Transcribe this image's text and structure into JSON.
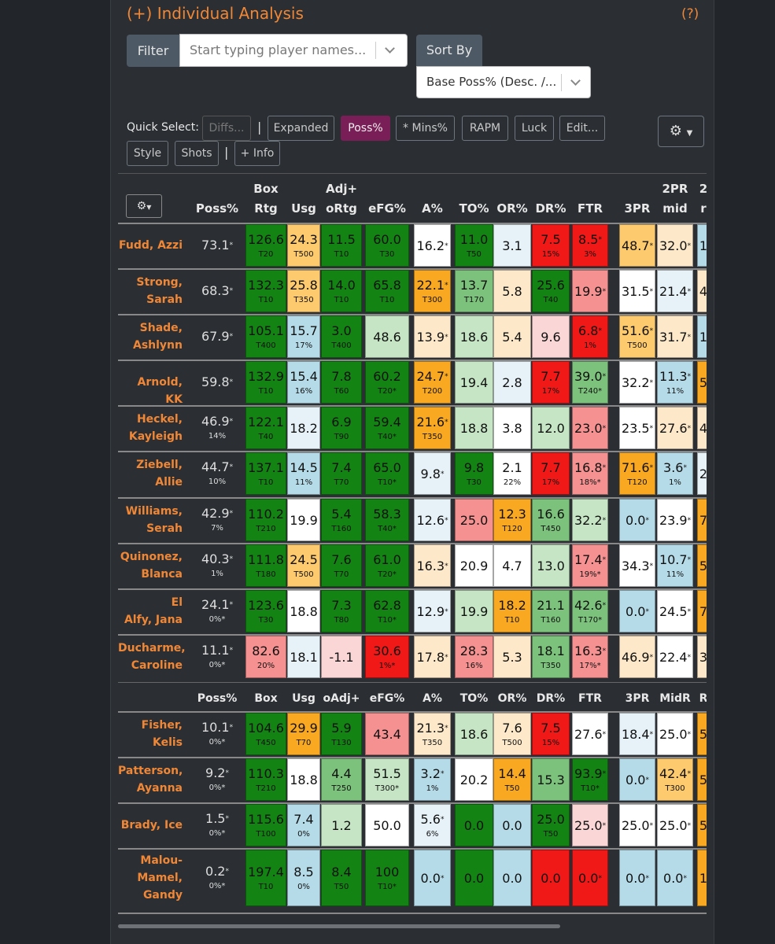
{
  "header": {
    "title": "(+) Individual Analysis",
    "help": "(?)"
  },
  "filter": {
    "label": "Filter",
    "placeholder": "Start typing player names..."
  },
  "sort": {
    "label": "Sort By",
    "value": "Base Poss% (Desc. /..."
  },
  "quick_select": {
    "label": "Quick Select:",
    "buttons": [
      "Diffs...",
      "Expanded",
      "Poss%",
      "* Mins%",
      "RAPM",
      "Luck",
      "Edit...",
      "Style",
      "Shots",
      "+ Info"
    ],
    "active": "Poss%",
    "disabled": "Diffs...",
    "separator": "|"
  },
  "icons": {
    "settings": "gear-icon",
    "dropdown": "chevron-down-icon"
  },
  "table": {
    "headers_top": [
      "",
      "Box",
      "",
      "Adj+",
      "",
      "",
      "",
      "",
      "",
      "",
      "",
      "2PR",
      "2"
    ],
    "headers_bottom": [
      "Poss%",
      "Rtg",
      "Usg",
      "oRtg",
      "eFG%",
      "A%",
      "TO%",
      "OR%",
      "DR%",
      "FTR",
      "3PR",
      "mid",
      "r"
    ],
    "mid_headers": [
      "Poss%",
      "Box",
      "Usg",
      "oAdj+",
      "eFG%",
      "A%",
      "TO%",
      "OR%",
      "DR%",
      "FTR",
      "3PR",
      "MidR",
      "R"
    ],
    "players": [
      {
        "name": "Fudd, Azzi",
        "poss": "73.1",
        "poss_star": true,
        "poss_sub": "",
        "cells": [
          [
            "126.6",
            "T20",
            "dg"
          ],
          [
            "24.3",
            "T500",
            "lo"
          ],
          [
            "11.5",
            "T10",
            "dg"
          ],
          [
            "60.0",
            "T30",
            "dg"
          ],
          [
            "16.2",
            "",
            "wt",
            "*"
          ],
          [
            "11.0",
            "T50",
            "dg"
          ],
          [
            "3.1",
            "",
            "vl"
          ],
          [
            "7.5",
            "15%",
            "rd"
          ],
          [
            "8.5",
            "3%",
            "rd",
            "*"
          ],
          [
            "48.7",
            "",
            "lo",
            "*"
          ],
          [
            "32.0",
            "",
            "pc",
            "*"
          ],
          [
            "1",
            "",
            "lb"
          ]
        ]
      },
      {
        "name": "Strong, Sarah",
        "poss": "68.3",
        "poss_star": true,
        "poss_sub": "",
        "cells": [
          [
            "132.3",
            "T10",
            "dg"
          ],
          [
            "25.8",
            "T350",
            "lo"
          ],
          [
            "14.0",
            "T10",
            "dg"
          ],
          [
            "65.8",
            "T10",
            "dg"
          ],
          [
            "22.1",
            "T300",
            "or",
            "*"
          ],
          [
            "13.7",
            "T170",
            "mg"
          ],
          [
            "5.8",
            "",
            "pc"
          ],
          [
            "25.6",
            "T40",
            "dg"
          ],
          [
            "19.9",
            "",
            "lr",
            "*"
          ],
          [
            "31.5",
            "",
            "wt",
            "*"
          ],
          [
            "21.4",
            "",
            "vl",
            "*"
          ],
          [
            "4",
            "",
            "pc"
          ]
        ]
      },
      {
        "name": "Shade, Ashlynn",
        "poss": "67.9",
        "poss_star": true,
        "poss_sub": "",
        "cells": [
          [
            "105.1",
            "T400",
            "dg"
          ],
          [
            "15.7",
            "17%",
            "lb"
          ],
          [
            "3.0",
            "T400",
            "dg"
          ],
          [
            "48.6",
            "",
            "pg"
          ],
          [
            "13.9",
            "",
            "pc",
            "*"
          ],
          [
            "18.6",
            "",
            "pg"
          ],
          [
            "5.4",
            "",
            "pc"
          ],
          [
            "9.6",
            "",
            "pk"
          ],
          [
            "6.8",
            "1%",
            "rd",
            "*"
          ],
          [
            "51.6",
            "T500",
            "lo",
            "*"
          ],
          [
            "31.7",
            "",
            "pc",
            "*"
          ],
          [
            "1",
            "",
            "lb"
          ]
        ]
      },
      {
        "name": "Arnold, KK",
        "poss": "59.8",
        "poss_star": true,
        "poss_sub": "",
        "cells": [
          [
            "132.9",
            "T10",
            "dg"
          ],
          [
            "15.4",
            "16%",
            "lb"
          ],
          [
            "7.8",
            "T60",
            "dg"
          ],
          [
            "60.2",
            "T20*",
            "dg"
          ],
          [
            "24.7",
            "T200",
            "or",
            "*"
          ],
          [
            "19.4",
            "",
            "pg"
          ],
          [
            "2.8",
            "",
            "vl"
          ],
          [
            "7.7",
            "17%",
            "rd"
          ],
          [
            "39.0",
            "T240*",
            "mg",
            "*"
          ],
          [
            "32.2",
            "",
            "wt",
            "*"
          ],
          [
            "11.3",
            "11%",
            "lb",
            "*"
          ],
          [
            "5",
            "",
            "or"
          ]
        ]
      },
      {
        "name": "Heckel, Kayleigh",
        "poss": "46.9",
        "poss_star": true,
        "poss_sub": "14%",
        "cells": [
          [
            "122.1",
            "T40",
            "dg"
          ],
          [
            "18.2",
            "",
            "vl"
          ],
          [
            "6.9",
            "T90",
            "dg"
          ],
          [
            "59.4",
            "T40*",
            "dg"
          ],
          [
            "21.6",
            "T350",
            "or",
            "*"
          ],
          [
            "18.8",
            "",
            "pg"
          ],
          [
            "3.8",
            "",
            "wt"
          ],
          [
            "12.0",
            "",
            "pg"
          ],
          [
            "23.0",
            "",
            "lr",
            "*"
          ],
          [
            "23.5",
            "",
            "wt",
            "*"
          ],
          [
            "27.6",
            "",
            "pc",
            "*"
          ],
          [
            "4",
            "",
            "pc"
          ]
        ]
      },
      {
        "name": "Ziebell, Allie",
        "poss": "44.7",
        "poss_star": true,
        "poss_sub": "10%",
        "cells": [
          [
            "137.1",
            "T10",
            "dg"
          ],
          [
            "14.5",
            "11%",
            "lb"
          ],
          [
            "7.4",
            "T70",
            "dg"
          ],
          [
            "65.0",
            "T10*",
            "dg"
          ],
          [
            "9.8",
            "",
            "vl",
            "*"
          ],
          [
            "9.8",
            "T30",
            "dg"
          ],
          [
            "2.1",
            "22%",
            "wt"
          ],
          [
            "7.7",
            "17%",
            "rd"
          ],
          [
            "16.8",
            "18%*",
            "lr",
            "*"
          ],
          [
            "71.6",
            "T120",
            "or",
            "*"
          ],
          [
            "3.6",
            "1%",
            "lb",
            "*"
          ],
          [
            "2",
            "",
            "vl"
          ]
        ]
      },
      {
        "name": "Williams, Serah",
        "poss": "42.9",
        "poss_star": true,
        "poss_sub": "7%",
        "cells": [
          [
            "110.2",
            "T210",
            "dg"
          ],
          [
            "19.9",
            "",
            "wt"
          ],
          [
            "5.4",
            "T160",
            "dg"
          ],
          [
            "58.3",
            "T40*",
            "dg"
          ],
          [
            "12.6",
            "",
            "vl",
            "*"
          ],
          [
            "25.0",
            "",
            "lr"
          ],
          [
            "12.3",
            "T120",
            "or"
          ],
          [
            "16.6",
            "T450",
            "mg"
          ],
          [
            "32.2",
            "",
            "pg",
            "*"
          ],
          [
            "0.0",
            "",
            "lb",
            "*"
          ],
          [
            "23.9",
            "",
            "wt",
            "*"
          ],
          [
            "7",
            "",
            "or"
          ]
        ]
      },
      {
        "name": "Quinonez, Blanca",
        "poss": "40.3",
        "poss_star": true,
        "poss_sub": "1%",
        "cells": [
          [
            "111.8",
            "T180",
            "dg"
          ],
          [
            "24.5",
            "T500",
            "lo"
          ],
          [
            "7.6",
            "T70",
            "dg"
          ],
          [
            "61.0",
            "T20*",
            "dg"
          ],
          [
            "16.3",
            "",
            "pc",
            "*"
          ],
          [
            "20.9",
            "",
            "wt"
          ],
          [
            "4.7",
            "",
            "wt"
          ],
          [
            "13.0",
            "",
            "pg"
          ],
          [
            "17.4",
            "19%*",
            "lr",
            "*"
          ],
          [
            "34.3",
            "",
            "wt",
            "*"
          ],
          [
            "10.7",
            "11%",
            "lb",
            "*"
          ],
          [
            "5",
            "",
            "or"
          ]
        ]
      },
      {
        "name": "El Alfy, Jana",
        "poss": "24.1",
        "poss_star": true,
        "poss_sub": "0%*",
        "cells": [
          [
            "123.6",
            "T30",
            "dg"
          ],
          [
            "18.8",
            "",
            "wt"
          ],
          [
            "7.3",
            "T80",
            "dg"
          ],
          [
            "62.8",
            "T10*",
            "dg"
          ],
          [
            "12.9",
            "",
            "vl",
            "*"
          ],
          [
            "19.9",
            "",
            "pg"
          ],
          [
            "18.2",
            "T10",
            "or"
          ],
          [
            "21.1",
            "T160",
            "mg"
          ],
          [
            "42.6",
            "T170*",
            "mg",
            "*"
          ],
          [
            "0.0",
            "",
            "lb",
            "*"
          ],
          [
            "24.5",
            "",
            "wt",
            "*"
          ],
          [
            "7",
            "",
            "or"
          ]
        ]
      },
      {
        "name": "Ducharme, Caroline",
        "poss": "11.1",
        "poss_star": true,
        "poss_sub": "0%*",
        "cells": [
          [
            "82.6",
            "20%",
            "lr"
          ],
          [
            "18.1",
            "",
            "vl"
          ],
          [
            "-1.1",
            "",
            "pk"
          ],
          [
            "30.6",
            "1%*",
            "rd"
          ],
          [
            "17.8",
            "",
            "pc",
            "*"
          ],
          [
            "28.3",
            "16%",
            "lr"
          ],
          [
            "5.3",
            "",
            "pc"
          ],
          [
            "18.1",
            "T350",
            "mg"
          ],
          [
            "16.3",
            "17%*",
            "lr",
            "*"
          ],
          [
            "46.9",
            "",
            "pc",
            "*"
          ],
          [
            "22.4",
            "",
            "wt",
            "*"
          ],
          [
            "3",
            "",
            "pc"
          ]
        ]
      },
      {
        "name": "Fisher, Kelis",
        "poss": "10.1",
        "poss_star": true,
        "poss_sub": "0%*",
        "cells": [
          [
            "104.6",
            "T450",
            "dg"
          ],
          [
            "29.9",
            "T70",
            "or"
          ],
          [
            "5.9",
            "T130",
            "dg"
          ],
          [
            "43.4",
            "",
            "lr"
          ],
          [
            "21.3",
            "T350",
            "pc",
            "*"
          ],
          [
            "18.6",
            "",
            "pg"
          ],
          [
            "7.6",
            "T500",
            "pc"
          ],
          [
            "7.5",
            "15%",
            "rd"
          ],
          [
            "27.6",
            "",
            "wt",
            "*"
          ],
          [
            "18.4",
            "",
            "vl",
            "*"
          ],
          [
            "25.0",
            "",
            "wt",
            "*"
          ],
          [
            "5",
            "",
            "or"
          ]
        ]
      },
      {
        "name": "Patterson, Ayanna",
        "poss": "9.2",
        "poss_star": true,
        "poss_sub": "0%*",
        "cells": [
          [
            "110.3",
            "T210",
            "dg"
          ],
          [
            "18.8",
            "",
            "wt"
          ],
          [
            "4.4",
            "T250",
            "mg"
          ],
          [
            "51.5",
            "T300*",
            "pg"
          ],
          [
            "3.2",
            "1%",
            "lb",
            "*"
          ],
          [
            "20.2",
            "",
            "wt"
          ],
          [
            "14.4",
            "T50",
            "or"
          ],
          [
            "15.3",
            "",
            "mg"
          ],
          [
            "93.9",
            "T10*",
            "dg",
            "*"
          ],
          [
            "0.0",
            "",
            "lb",
            "*"
          ],
          [
            "42.4",
            "T300",
            "lo",
            "*"
          ],
          [
            "5",
            "",
            "or"
          ]
        ]
      },
      {
        "name": "Brady, Ice",
        "poss": "1.5",
        "poss_star": true,
        "poss_sub": "0%*",
        "cells": [
          [
            "115.6",
            "T100",
            "dg"
          ],
          [
            "7.4",
            "0%",
            "lb"
          ],
          [
            "1.2",
            "",
            "pg"
          ],
          [
            "50.0",
            "",
            "wt"
          ],
          [
            "5.6",
            "6%",
            "vl",
            "*"
          ],
          [
            "0.0",
            "",
            "dg"
          ],
          [
            "0.0",
            "",
            "lb"
          ],
          [
            "25.0",
            "T50",
            "dg"
          ],
          [
            "25.0",
            "",
            "pk",
            "*"
          ],
          [
            "25.0",
            "",
            "wt",
            "*"
          ],
          [
            "25.0",
            "",
            "wt",
            "*"
          ],
          [
            "5",
            "",
            "or"
          ]
        ]
      },
      {
        "name": "Malou-Mamel, Gandy",
        "poss": "0.2",
        "poss_star": true,
        "poss_sub": "0%*",
        "cells": [
          [
            "197.4",
            "T10",
            "dg"
          ],
          [
            "8.5",
            "0%",
            "lb"
          ],
          [
            "8.4",
            "T50",
            "dg"
          ],
          [
            "100",
            "T10*",
            "dg"
          ],
          [
            "0.0",
            "",
            "lb",
            "*"
          ],
          [
            "0.0",
            "",
            "dg"
          ],
          [
            "0.0",
            "",
            "lb"
          ],
          [
            "0.0",
            "",
            "rd"
          ],
          [
            "0.0",
            "",
            "rd",
            "*"
          ],
          [
            "0.0",
            "",
            "lb",
            "*"
          ],
          [
            "0.0",
            "",
            "lb",
            "*"
          ],
          [
            "1",
            "",
            "or"
          ]
        ]
      }
    ]
  },
  "colors": {
    "dg": "#138313",
    "mg": "#7cc27c",
    "pg": "#c5e5c5",
    "wt": "#ffffff",
    "vl": "#e6f2f8",
    "lb": "#b5dbe8",
    "pc": "#fde9c9",
    "lo": "#fdca6e",
    "or": "#f9a921",
    "lr": "#f59191",
    "rd": "#f11818",
    "pk": "#fbd6d6",
    "accent": "#f08736",
    "active": "#7a1e58"
  }
}
